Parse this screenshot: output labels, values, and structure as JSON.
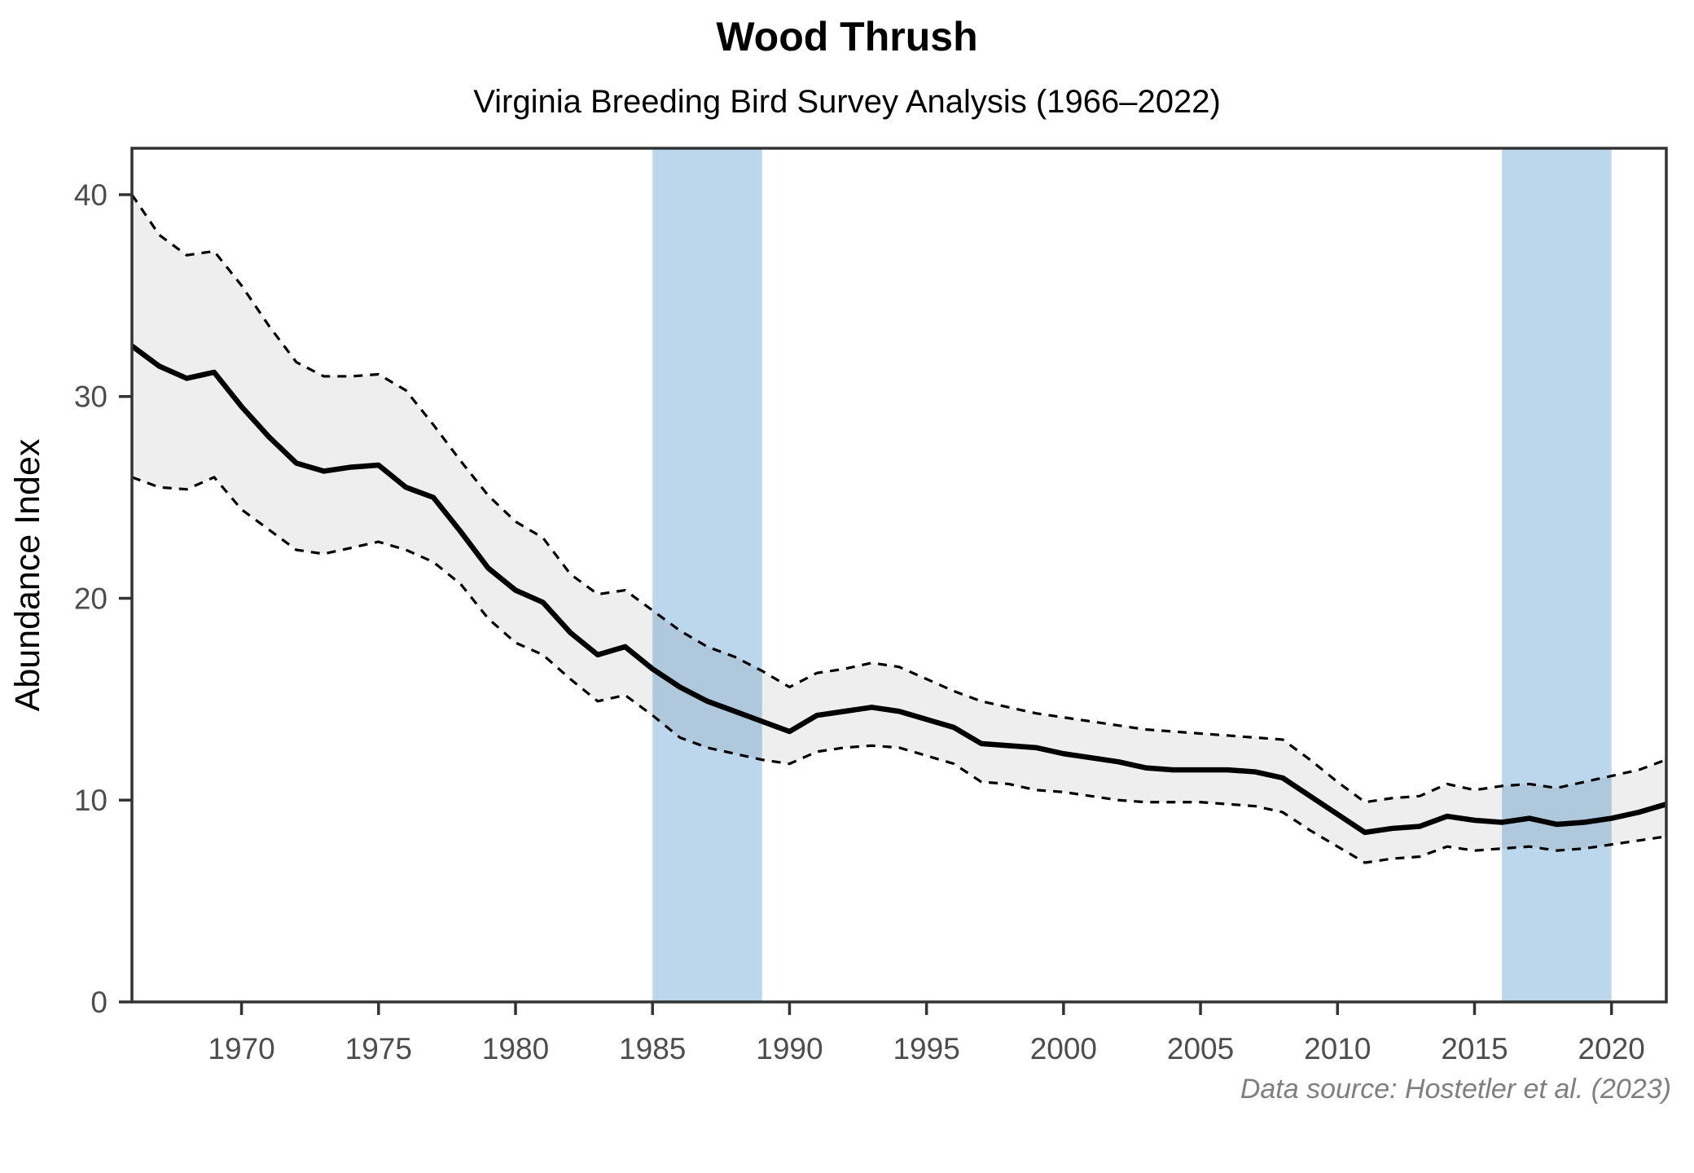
{
  "chart_data": {
    "type": "line",
    "title": "Wood Thrush",
    "subtitle": "Virginia Breeding Bird Survey Analysis (1966–2022)",
    "caption": "Data source: Hostetler et al. (2023)",
    "xlabel": "",
    "ylabel": "Abundance Index",
    "xlim": [
      1966,
      2022
    ],
    "ylim": [
      0,
      42.3
    ],
    "x_ticks": [
      1970,
      1975,
      1980,
      1985,
      1990,
      1995,
      2000,
      2005,
      2010,
      2015,
      2020
    ],
    "y_ticks": [
      0,
      10,
      20,
      30,
      40
    ],
    "grid": "off",
    "legend": "none",
    "x": [
      1966,
      1967,
      1968,
      1969,
      1970,
      1971,
      1972,
      1973,
      1974,
      1975,
      1976,
      1977,
      1978,
      1979,
      1980,
      1981,
      1982,
      1983,
      1984,
      1985,
      1986,
      1987,
      1988,
      1989,
      1990,
      1991,
      1992,
      1993,
      1994,
      1995,
      1996,
      1997,
      1998,
      1999,
      2000,
      2001,
      2002,
      2003,
      2004,
      2005,
      2006,
      2007,
      2008,
      2009,
      2010,
      2011,
      2012,
      2013,
      2014,
      2015,
      2016,
      2017,
      2018,
      2019,
      2020,
      2021,
      2022
    ],
    "series": [
      {
        "name": "abundance-index-trend",
        "style": "solid",
        "values": [
          32.5,
          31.5,
          30.9,
          31.2,
          29.5,
          28.0,
          26.7,
          26.3,
          26.5,
          26.6,
          25.5,
          25.0,
          23.3,
          21.5,
          20.4,
          19.8,
          18.3,
          17.2,
          17.6,
          16.5,
          15.6,
          14.9,
          14.4,
          13.9,
          13.4,
          14.2,
          14.4,
          14.6,
          14.4,
          14.0,
          13.6,
          12.8,
          12.7,
          12.6,
          12.3,
          12.1,
          11.9,
          11.6,
          11.5,
          11.5,
          11.5,
          11.4,
          11.1,
          10.2,
          9.3,
          8.4,
          8.6,
          8.7,
          9.2,
          9.0,
          8.9,
          9.1,
          8.8,
          8.9,
          9.1,
          9.4,
          9.8
        ]
      },
      {
        "name": "upper-confidence-bound",
        "style": "dashed",
        "values": [
          40.0,
          38.0,
          37.0,
          37.2,
          35.5,
          33.5,
          31.7,
          31.0,
          31.0,
          31.1,
          30.3,
          28.6,
          26.8,
          25.1,
          23.8,
          23.0,
          21.2,
          20.2,
          20.4,
          19.4,
          18.4,
          17.6,
          17.1,
          16.4,
          15.6,
          16.3,
          16.5,
          16.8,
          16.6,
          16.0,
          15.4,
          14.9,
          14.6,
          14.3,
          14.1,
          13.9,
          13.7,
          13.5,
          13.4,
          13.3,
          13.2,
          13.1,
          13.0,
          12.0,
          10.9,
          9.9,
          10.1,
          10.2,
          10.8,
          10.5,
          10.7,
          10.8,
          10.6,
          10.9,
          11.2,
          11.5,
          12.0
        ]
      },
      {
        "name": "lower-confidence-bound",
        "style": "dashed",
        "values": [
          26.0,
          25.5,
          25.4,
          26.0,
          24.4,
          23.4,
          22.4,
          22.2,
          22.5,
          22.8,
          22.4,
          21.8,
          20.7,
          19.0,
          17.8,
          17.2,
          16.0,
          14.9,
          15.2,
          14.2,
          13.1,
          12.6,
          12.3,
          12.0,
          11.8,
          12.4,
          12.6,
          12.7,
          12.6,
          12.2,
          11.8,
          10.9,
          10.8,
          10.5,
          10.4,
          10.2,
          10.0,
          9.9,
          9.9,
          9.9,
          9.8,
          9.7,
          9.4,
          8.5,
          7.7,
          6.9,
          7.1,
          7.2,
          7.7,
          7.5,
          7.6,
          7.7,
          7.5,
          7.6,
          7.8,
          8.0,
          8.2
        ]
      }
    ],
    "highlight_bands": [
      {
        "from": 1985,
        "to": 1989
      },
      {
        "from": 2016,
        "to": 2020
      }
    ],
    "colors": {
      "band": "#bcd7ec",
      "ribbon": "rgba(0,0,0,0.065)",
      "trend_line": "#000000",
      "ci_line": "#000000",
      "axis": "#333333",
      "tick_label": "#4d4d4d",
      "caption": "#7f7f7f"
    }
  }
}
